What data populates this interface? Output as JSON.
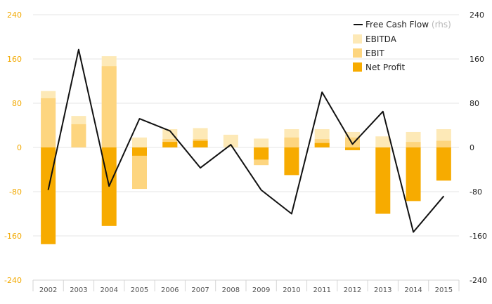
{
  "chart_data": {
    "type": "bar",
    "categories": [
      "2002",
      "2003",
      "2004",
      "2005",
      "2006",
      "2007",
      "2008",
      "2009",
      "2010",
      "2011",
      "2012",
      "2013",
      "2014",
      "2015"
    ],
    "ylim": [
      -240,
      240
    ],
    "yticks": [
      240,
      160,
      80,
      0,
      -80,
      -160,
      -240
    ],
    "ytick_labels": [
      "240",
      "160",
      "80",
      "0",
      "-80",
      "-160",
      "-240"
    ],
    "bar_series": [
      {
        "name": "EBITDA",
        "color": "#fde9b7",
        "values": [
          102,
          57,
          165,
          18,
          33,
          35,
          23,
          16,
          33,
          33,
          28,
          20,
          28,
          33
        ]
      },
      {
        "name": "EBIT",
        "color": "#fdd57f",
        "values": [
          89,
          42,
          147,
          -75,
          15,
          15,
          0,
          -32,
          18,
          15,
          18,
          0,
          10,
          12
        ]
      },
      {
        "name": "Net Profit",
        "color": "#f7ab00",
        "values": [
          -175,
          0,
          -142,
          -15,
          10,
          12,
          0,
          -22,
          -50,
          8,
          -5,
          -120,
          -97,
          -60
        ]
      }
    ],
    "line_series": {
      "name": "Free Cash Flow",
      "suffix": "(rhs)",
      "color": "#111111",
      "values": [
        -77,
        177,
        -70,
        52,
        30,
        -37,
        5,
        -77,
        -120,
        100,
        6,
        65,
        -153,
        -88
      ]
    },
    "grid": true,
    "legend": "top-right",
    "title": "",
    "xlabel": "",
    "ylabel": ""
  }
}
